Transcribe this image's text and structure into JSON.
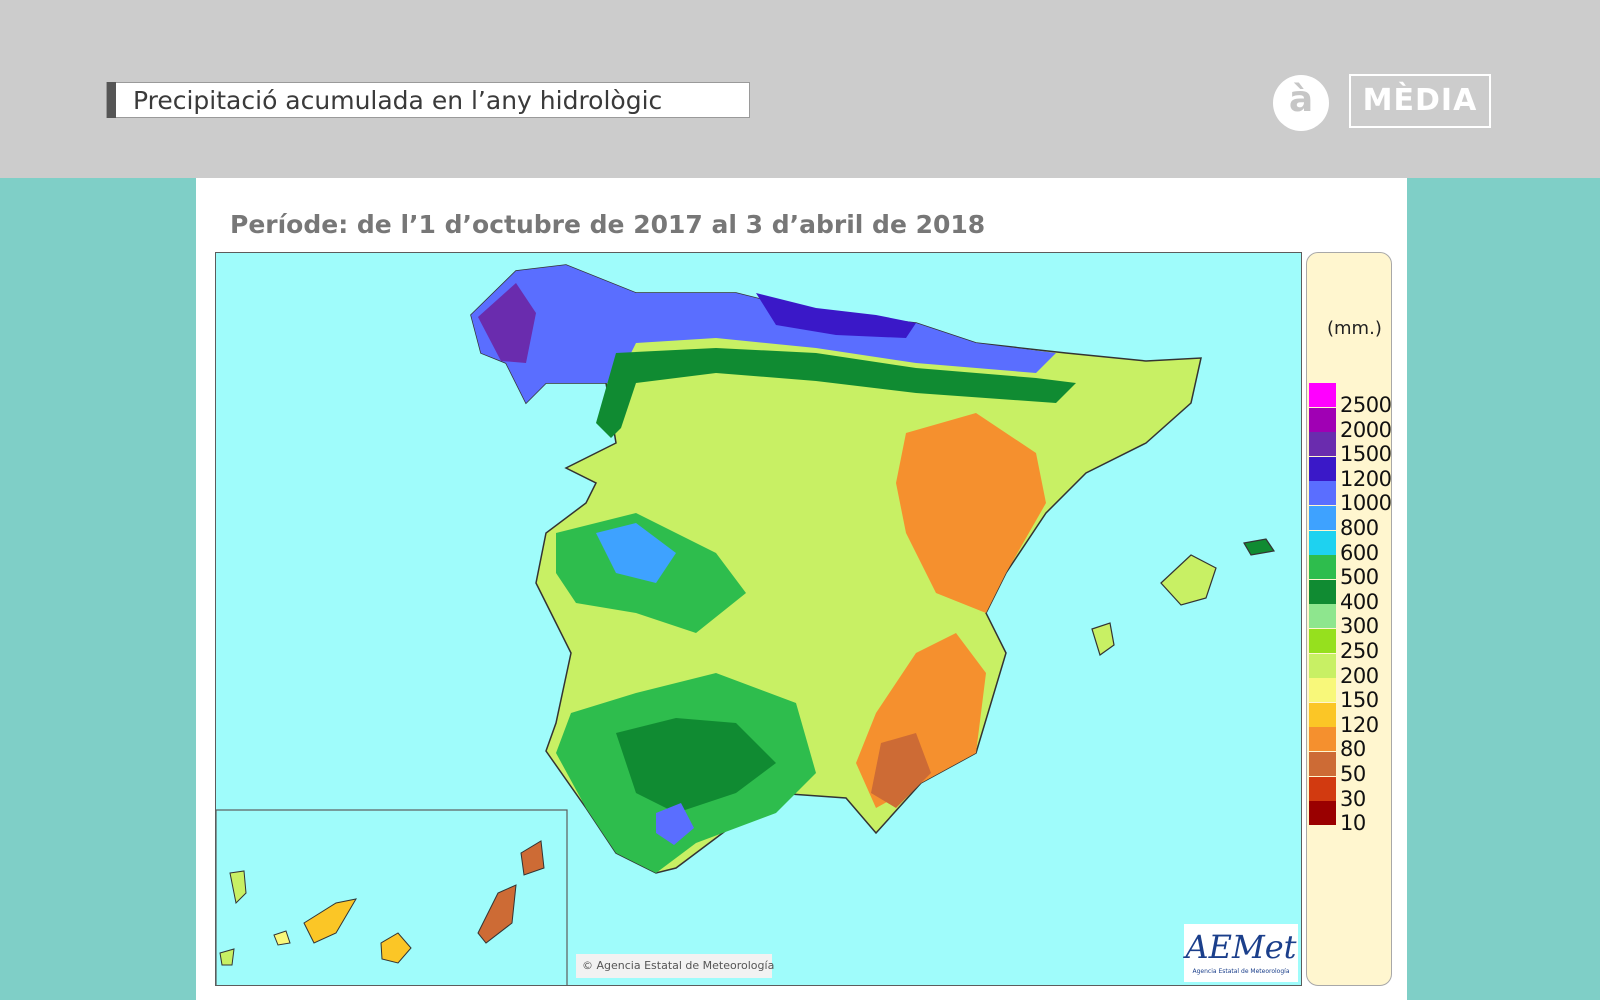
{
  "header": {
    "title": "Precipitació acumulada en l’any hidrològic",
    "logo_letter": "à",
    "logo_text": "MÈDIA"
  },
  "map": {
    "subtitle": "Període: de l’1 d’octubre de 2017 al 3 d’abril de 2018",
    "credit": "© Agencia Estatal de Meteorología",
    "agency_logo": "AEMet",
    "agency_logo_sub": "Agencia Estatal de Meteorología"
  },
  "legend": {
    "unit": "(mm.)",
    "classes": [
      {
        "label": "2500",
        "color": "#ff00ff"
      },
      {
        "label": "2000",
        "color": "#a000b4"
      },
      {
        "label": "1500",
        "color": "#6a2cae"
      },
      {
        "label": "1200",
        "color": "#3a18c8"
      },
      {
        "label": "1000",
        "color": "#5a6eff"
      },
      {
        "label": "800",
        "color": "#3ea2ff"
      },
      {
        "label": "600",
        "color": "#1ed2f0"
      },
      {
        "label": "500",
        "color": "#2ebd4d"
      },
      {
        "label": "400",
        "color": "#108b32"
      },
      {
        "label": "300",
        "color": "#8ee68e"
      },
      {
        "label": "250",
        "color": "#96e01e"
      },
      {
        "label": "200",
        "color": "#c8f064"
      },
      {
        "label": "150",
        "color": "#f8f87a"
      },
      {
        "label": "120",
        "color": "#fbc626"
      },
      {
        "label": "80",
        "color": "#f5902e"
      },
      {
        "label": "50",
        "color": "#cd6b35"
      },
      {
        "label": "30",
        "color": "#d23a10"
      },
      {
        "label": "10",
        "color": "#9a0000"
      }
    ]
  }
}
